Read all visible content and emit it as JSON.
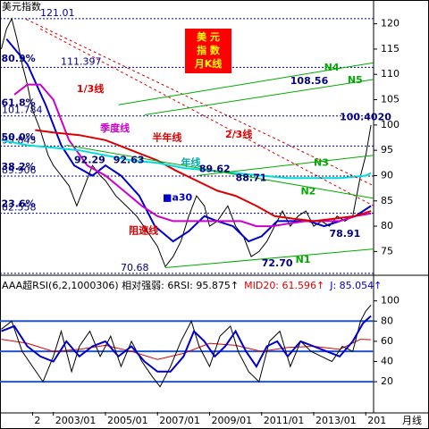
{
  "chart_data": [
    {
      "type": "line",
      "title": "美元指数",
      "xlim": [
        2000.95,
        2015.3
      ],
      "ylim": [
        70.3,
        124.7
      ],
      "yticks": [
        75,
        80,
        85,
        90,
        95,
        100,
        105,
        110,
        115,
        120
      ],
      "levels": [
        121.01,
        111.397,
        101.784,
        95.845,
        89.906,
        82.558,
        70.68
      ],
      "badge": [
        "美 元",
        "指 数",
        "月K线"
      ],
      "series": [
        {
          "color": "#000000",
          "width": 1,
          "x": [
            2001.0,
            2001.2,
            2001.4,
            2001.6,
            2001.8,
            2002.0,
            2002.2,
            2002.5,
            2002.8,
            2003.0,
            2003.3,
            2003.6,
            2003.9,
            2004.2,
            2004.5,
            2004.8,
            2005.0,
            2005.4,
            2005.8,
            2006.2,
            2006.6,
            2007.0,
            2007.3,
            2007.6,
            2007.9,
            2008.2,
            2008.5,
            2008.8,
            2009.0,
            2009.3,
            2009.7,
            2010.0,
            2010.3,
            2010.6,
            2010.9,
            2011.2,
            2011.5,
            2011.8,
            2012.1,
            2012.4,
            2012.7,
            2013.0,
            2013.3,
            2013.6,
            2013.9,
            2014.2,
            2014.5,
            2014.8,
            2015.0,
            2015.2
          ],
          "values": [
            115,
            119,
            121,
            117,
            112,
            108,
            103,
            99,
            94,
            92,
            90,
            88,
            84,
            88,
            92,
            90,
            89,
            86,
            84,
            82,
            79,
            76,
            72,
            74,
            77,
            82,
            86,
            84,
            80,
            81,
            84,
            80,
            78,
            74,
            75,
            77,
            80,
            83,
            80,
            82,
            83,
            80,
            81,
            80,
            82,
            81,
            82,
            90,
            94,
            100
          ]
        },
        {
          "color": "#0000cc",
          "width": 2,
          "x": [
            2001.2,
            2002.0,
            2002.7,
            2003.3,
            2003.8,
            2004.5,
            2005.0,
            2005.6,
            2006.3,
            2006.9,
            2007.6,
            2008.2,
            2008.8,
            2009.3,
            2009.9,
            2010.5,
            2011.0,
            2011.6,
            2012.2,
            2012.8,
            2013.4,
            2014.0,
            2014.6,
            2015.2
          ],
          "values": [
            117,
            112,
            104,
            96,
            92,
            90,
            92,
            90,
            86,
            80,
            77,
            79,
            82,
            81,
            80,
            77,
            78,
            81,
            81,
            81,
            80,
            81,
            82,
            84
          ]
        },
        {
          "color": "#cc00cc",
          "width": 2,
          "x": [
            2001.5,
            2002.0,
            2002.5,
            2003.0,
            2003.6,
            2004.3,
            2005.0,
            2005.7,
            2006.4,
            2007.0,
            2007.6,
            2008.3,
            2009.0,
            2009.6,
            2010.2,
            2010.8,
            2011.4,
            2012.0,
            2012.7,
            2013.4,
            2014.0,
            2014.6,
            2015.2
          ],
          "values": [
            106,
            108,
            108,
            105,
            97,
            92,
            90,
            87,
            84,
            82,
            81,
            81,
            81,
            81,
            81,
            80,
            80,
            80.5,
            81,
            81,
            81,
            82,
            82.5
          ]
        },
        {
          "color": "#dd0000",
          "width": 2,
          "x": [
            2002.3,
            2003.0,
            2004.0,
            2005.0,
            2006.0,
            2007.0,
            2007.7,
            2008.5,
            2009.3,
            2010.0,
            2010.8,
            2011.5,
            2012.2,
            2013.0,
            2013.8,
            2014.6,
            2015.2
          ],
          "values": [
            99,
            98.5,
            98,
            97,
            95,
            93,
            91,
            89,
            87,
            86,
            84,
            82,
            81.5,
            81,
            81.5,
            82,
            83
          ]
        },
        {
          "color": "#00dddd",
          "width": 2,
          "x": [
            2001.0,
            2002.0,
            2003.0,
            2004.0,
            2005.0,
            2006.0,
            2007.0,
            2008.0,
            2009.0,
            2010.0,
            2011.0,
            2012.0,
            2013.0,
            2014.0,
            2015.0,
            2015.2
          ],
          "values": [
            97,
            96,
            95.5,
            95,
            94,
            93,
            92.5,
            91.5,
            91,
            90.5,
            90,
            89.5,
            89.5,
            89.5,
            90,
            90.5
          ]
        },
        {
          "color": "#cc0000",
          "width": 1,
          "dash": true,
          "x": [
            2001.95,
            2015.3
          ],
          "values": [
            120.9,
            88
          ]
        },
        {
          "color": "#dd0000",
          "width": 1,
          "dash": true,
          "x": [
            2002.5,
            2015.3
          ],
          "values": [
            119,
            84
          ]
        },
        {
          "color": "#00aa00",
          "width": 1,
          "x": [
            2005.5,
            2015.3
          ],
          "values": [
            104,
            112.3
          ]
        },
        {
          "color": "#00aa00",
          "width": 1,
          "x": [
            2006.5,
            2015.3
          ],
          "values": [
            102,
            109
          ]
        },
        {
          "color": "#00aa00",
          "width": 1,
          "x": [
            2008.5,
            2015.3
          ],
          "values": [
            90,
            94
          ]
        },
        {
          "color": "#00aa00",
          "width": 1,
          "x": [
            2003.5,
            2015.3
          ],
          "values": [
            96,
            85.5
          ]
        },
        {
          "color": "#00aa00",
          "width": 1,
          "x": [
            2007.3,
            2015.3
          ],
          "values": [
            71.8,
            75.5
          ]
        }
      ],
      "annotations": [
        {
          "text": "80.9%",
          "x": 2001.0,
          "y": 113,
          "color": "#000080"
        },
        {
          "text": "61.8%",
          "x": 2001.0,
          "y": 104.3,
          "color": "#000080"
        },
        {
          "text": "50.0%",
          "x": 2001.0,
          "y": 97.5,
          "color": "#000080"
        },
        {
          "text": "38.2%",
          "x": 2001.0,
          "y": 91.7,
          "color": "#000080"
        },
        {
          "text": "23.6%",
          "x": 2001.0,
          "y": 84.3,
          "color": "#000080"
        },
        {
          "text": "1/3线",
          "x": 2003.9,
          "y": 107,
          "color": "#dd0000"
        },
        {
          "text": "季度线",
          "x": 2004.8,
          "y": 99.3,
          "color": "#cc00cc"
        },
        {
          "text": "半年线",
          "x": 2006.8,
          "y": 97.4,
          "color": "#dd0000"
        },
        {
          "text": "年线",
          "x": 2007.9,
          "y": 92.5,
          "color": "#00aaaa"
        },
        {
          "text": "2/3线",
          "x": 2009.6,
          "y": 98,
          "color": "#dd0000"
        },
        {
          "text": "阻速线",
          "x": 2005.9,
          "y": 79,
          "color": "#dd0000"
        },
        {
          "text": "92.29",
          "x": 2003.8,
          "y": 93,
          "color": "#000080"
        },
        {
          "text": "92.63",
          "x": 2005.3,
          "y": 93,
          "color": "#000080"
        },
        {
          "text": "89.62",
          "x": 2008.6,
          "y": 91.2,
          "color": "#000080"
        },
        {
          "text": "88.71",
          "x": 2010.0,
          "y": 89.5,
          "color": "#000080"
        },
        {
          "text": "■a30",
          "x": 2007.2,
          "y": 85.6,
          "color": "#0000cc"
        },
        {
          "text": "108.56",
          "x": 2012.1,
          "y": 108.6,
          "color": "#000080"
        },
        {
          "text": "100.4020",
          "x": 2014.0,
          "y": 101.5,
          "color": "#000080"
        },
        {
          "text": "78.91",
          "x": 2013.6,
          "y": 78.4,
          "color": "#000080"
        },
        {
          "text": "72.70",
          "x": 2011.0,
          "y": 72.6,
          "color": "#000080"
        },
        {
          "text": "N4",
          "x": 2013.4,
          "y": 111.3,
          "color": "#00aa00"
        },
        {
          "text": "N5",
          "x": 2014.3,
          "y": 108.8,
          "color": "#00aa00"
        },
        {
          "text": "N3",
          "x": 2013.0,
          "y": 92.5,
          "color": "#00aa00"
        },
        {
          "text": "N2",
          "x": 2012.5,
          "y": 86.8,
          "color": "#00aa00"
        },
        {
          "text": "N1",
          "x": 2012.3,
          "y": 73.3,
          "color": "#00aa00"
        }
      ]
    },
    {
      "type": "line",
      "header": [
        {
          "text": "AAA超RSI(6,2,1000306) 相对强弱: 6RSI: 95.875↑",
          "color": "#000000"
        },
        {
          "text": "MID20: 61.596↑",
          "color": "#dd0000"
        },
        {
          "text": "J: 85.054↑",
          "color": "#0000cc"
        }
      ],
      "xlim": [
        2000.95,
        2015.3
      ],
      "ylim": [
        -10,
        105
      ],
      "yticks": [
        20,
        40,
        60,
        80,
        100
      ],
      "levels": [
        20,
        50,
        80
      ],
      "xticks": [
        {
          "value": 2002.2,
          "label": "2"
        },
        {
          "value": 2003,
          "label": "2003/01"
        },
        {
          "value": 2005,
          "label": "2005/01"
        },
        {
          "value": 2007,
          "label": "2007/01"
        },
        {
          "value": 2009,
          "label": "2009/01"
        },
        {
          "value": 2011,
          "label": "2011/01"
        },
        {
          "value": 2013,
          "label": "2013/01"
        },
        {
          "value": 2015,
          "label": "201"
        }
      ],
      "x_unit_label": "月线",
      "series": [
        {
          "color": "#dd0000",
          "width": 1,
          "x": [
            2001.0,
            2002.0,
            2003.0,
            2004.0,
            2005.0,
            2006.0,
            2007.0,
            2008.0,
            2009.0,
            2010.0,
            2011.0,
            2012.0,
            2013.0,
            2014.0,
            2014.8,
            2015.2
          ],
          "values": [
            62,
            58,
            50,
            52,
            56,
            50,
            42,
            48,
            58,
            56,
            50,
            54,
            55,
            52,
            62,
            61.596
          ]
        },
        {
          "color": "#000000",
          "width": 1,
          "x": [
            2001.0,
            2001.4,
            2001.8,
            2002.2,
            2002.6,
            2003.0,
            2003.3,
            2003.7,
            2004.0,
            2004.4,
            2004.8,
            2005.2,
            2005.6,
            2006.0,
            2006.4,
            2006.8,
            2007.1,
            2007.5,
            2007.9,
            2008.3,
            2008.6,
            2009.0,
            2009.4,
            2009.8,
            2010.1,
            2010.5,
            2010.9,
            2011.3,
            2011.7,
            2012.1,
            2012.5,
            2012.9,
            2013.3,
            2013.7,
            2014.1,
            2014.5,
            2014.8,
            2015.0,
            2015.2
          ],
          "values": [
            72,
            80,
            50,
            35,
            20,
            45,
            70,
            30,
            55,
            70,
            45,
            65,
            35,
            60,
            40,
            25,
            15,
            35,
            60,
            80,
            55,
            35,
            65,
            75,
            50,
            30,
            20,
            60,
            70,
            35,
            60,
            50,
            45,
            40,
            55,
            50,
            80,
            90,
            95.875
          ]
        },
        {
          "color": "#0000cc",
          "width": 2,
          "x": [
            2001.0,
            2001.5,
            2002.0,
            2002.5,
            2003.0,
            2003.5,
            2004.0,
            2004.5,
            2005.0,
            2005.5,
            2006.0,
            2006.5,
            2007.0,
            2007.5,
            2008.0,
            2008.4,
            2008.8,
            2009.2,
            2009.6,
            2010.0,
            2010.4,
            2010.8,
            2011.2,
            2011.6,
            2012.0,
            2012.5,
            2013.0,
            2013.5,
            2014.0,
            2014.5,
            2014.9,
            2015.2
          ],
          "values": [
            70,
            75,
            55,
            45,
            40,
            60,
            45,
            55,
            60,
            45,
            55,
            40,
            30,
            30,
            45,
            70,
            60,
            45,
            55,
            70,
            50,
            35,
            55,
            60,
            45,
            60,
            55,
            50,
            45,
            60,
            78,
            85.054
          ]
        }
      ]
    }
  ]
}
